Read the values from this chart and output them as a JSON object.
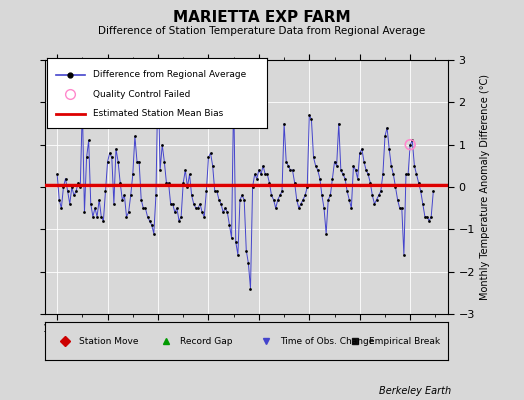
{
  "title": "MARIETTA EXP FARM",
  "subtitle": "Difference of Station Temperature Data from Regional Average",
  "ylabel": "Monthly Temperature Anomaly Difference (°C)",
  "xlim": [
    1913.5,
    1929.5
  ],
  "ylim": [
    -3,
    3
  ],
  "yticks": [
    -3,
    -2,
    -1,
    0,
    1,
    2,
    3
  ],
  "xticks": [
    1914,
    1916,
    1918,
    1920,
    1922,
    1924,
    1926,
    1928
  ],
  "bias_value": 0.05,
  "line_color": "#4444cc",
  "dot_color": "#000000",
  "bias_color": "#dd0000",
  "qc_fail_color": "#ff88cc",
  "background_color": "#d8d8d8",
  "data": [
    [
      1914.0,
      0.3
    ],
    [
      1914.083,
      -0.3
    ],
    [
      1914.167,
      -0.5
    ],
    [
      1914.25,
      0.0
    ],
    [
      1914.333,
      0.2
    ],
    [
      1914.417,
      -0.1
    ],
    [
      1914.5,
      -0.4
    ],
    [
      1914.583,
      0.0
    ],
    [
      1914.667,
      -0.2
    ],
    [
      1914.75,
      -0.1
    ],
    [
      1914.833,
      0.1
    ],
    [
      1914.917,
      0.0
    ],
    [
      1915.0,
      1.9
    ],
    [
      1915.083,
      -0.6
    ],
    [
      1915.167,
      0.7
    ],
    [
      1915.25,
      1.1
    ],
    [
      1915.333,
      -0.4
    ],
    [
      1915.417,
      -0.7
    ],
    [
      1915.5,
      -0.5
    ],
    [
      1915.583,
      -0.7
    ],
    [
      1915.667,
      -0.3
    ],
    [
      1915.75,
      -0.7
    ],
    [
      1915.833,
      -0.8
    ],
    [
      1915.917,
      -0.1
    ],
    [
      1916.0,
      0.6
    ],
    [
      1916.083,
      0.8
    ],
    [
      1916.167,
      0.7
    ],
    [
      1916.25,
      -0.4
    ],
    [
      1916.333,
      0.9
    ],
    [
      1916.417,
      0.6
    ],
    [
      1916.5,
      0.1
    ],
    [
      1916.583,
      -0.3
    ],
    [
      1916.667,
      -0.2
    ],
    [
      1916.75,
      -0.7
    ],
    [
      1916.833,
      -0.6
    ],
    [
      1916.917,
      -0.2
    ],
    [
      1917.0,
      0.3
    ],
    [
      1917.083,
      1.2
    ],
    [
      1917.167,
      0.6
    ],
    [
      1917.25,
      0.6
    ],
    [
      1917.333,
      -0.3
    ],
    [
      1917.417,
      -0.5
    ],
    [
      1917.5,
      -0.5
    ],
    [
      1917.583,
      -0.7
    ],
    [
      1917.667,
      -0.8
    ],
    [
      1917.75,
      -0.9
    ],
    [
      1917.833,
      -1.1
    ],
    [
      1917.917,
      -0.2
    ],
    [
      1918.0,
      2.6
    ],
    [
      1918.083,
      0.4
    ],
    [
      1918.167,
      1.0
    ],
    [
      1918.25,
      0.6
    ],
    [
      1918.333,
      0.1
    ],
    [
      1918.417,
      0.1
    ],
    [
      1918.5,
      -0.4
    ],
    [
      1918.583,
      -0.4
    ],
    [
      1918.667,
      -0.6
    ],
    [
      1918.75,
      -0.5
    ],
    [
      1918.833,
      -0.8
    ],
    [
      1918.917,
      -0.7
    ],
    [
      1919.0,
      0.1
    ],
    [
      1919.083,
      0.4
    ],
    [
      1919.167,
      0.0
    ],
    [
      1919.25,
      0.3
    ],
    [
      1919.333,
      -0.2
    ],
    [
      1919.417,
      -0.4
    ],
    [
      1919.5,
      -0.5
    ],
    [
      1919.583,
      -0.5
    ],
    [
      1919.667,
      -0.4
    ],
    [
      1919.75,
      -0.6
    ],
    [
      1919.833,
      -0.7
    ],
    [
      1919.917,
      -0.1
    ],
    [
      1920.0,
      0.7
    ],
    [
      1920.083,
      0.8
    ],
    [
      1920.167,
      0.5
    ],
    [
      1920.25,
      -0.1
    ],
    [
      1920.333,
      -0.1
    ],
    [
      1920.417,
      -0.3
    ],
    [
      1920.5,
      -0.4
    ],
    [
      1920.583,
      -0.6
    ],
    [
      1920.667,
      -0.5
    ],
    [
      1920.75,
      -0.6
    ],
    [
      1920.833,
      -0.9
    ],
    [
      1920.917,
      -1.2
    ],
    [
      1921.0,
      2.2
    ],
    [
      1921.083,
      -1.3
    ],
    [
      1921.167,
      -1.6
    ],
    [
      1921.25,
      -0.3
    ],
    [
      1921.333,
      -0.2
    ],
    [
      1921.417,
      -0.3
    ],
    [
      1921.5,
      -1.5
    ],
    [
      1921.583,
      -1.8
    ],
    [
      1921.667,
      -2.4
    ],
    [
      1921.75,
      0.0
    ],
    [
      1921.833,
      0.3
    ],
    [
      1921.917,
      0.2
    ],
    [
      1922.0,
      0.4
    ],
    [
      1922.083,
      0.3
    ],
    [
      1922.167,
      0.5
    ],
    [
      1922.25,
      0.3
    ],
    [
      1922.333,
      0.3
    ],
    [
      1922.417,
      0.1
    ],
    [
      1922.5,
      -0.2
    ],
    [
      1922.583,
      -0.3
    ],
    [
      1922.667,
      -0.5
    ],
    [
      1922.75,
      -0.3
    ],
    [
      1922.833,
      -0.2
    ],
    [
      1922.917,
      -0.1
    ],
    [
      1923.0,
      1.5
    ],
    [
      1923.083,
      0.6
    ],
    [
      1923.167,
      0.5
    ],
    [
      1923.25,
      0.4
    ],
    [
      1923.333,
      0.4
    ],
    [
      1923.417,
      0.1
    ],
    [
      1923.5,
      -0.3
    ],
    [
      1923.583,
      -0.5
    ],
    [
      1923.667,
      -0.4
    ],
    [
      1923.75,
      -0.3
    ],
    [
      1923.833,
      -0.2
    ],
    [
      1923.917,
      0.0
    ],
    [
      1924.0,
      1.7
    ],
    [
      1924.083,
      1.6
    ],
    [
      1924.167,
      0.7
    ],
    [
      1924.25,
      0.5
    ],
    [
      1924.333,
      0.4
    ],
    [
      1924.417,
      0.2
    ],
    [
      1924.5,
      -0.2
    ],
    [
      1924.583,
      -0.5
    ],
    [
      1924.667,
      -1.1
    ],
    [
      1924.75,
      -0.3
    ],
    [
      1924.833,
      -0.2
    ],
    [
      1924.917,
      0.2
    ],
    [
      1925.0,
      0.6
    ],
    [
      1925.083,
      0.5
    ],
    [
      1925.167,
      1.5
    ],
    [
      1925.25,
      0.4
    ],
    [
      1925.333,
      0.3
    ],
    [
      1925.417,
      0.2
    ],
    [
      1925.5,
      -0.1
    ],
    [
      1925.583,
      -0.3
    ],
    [
      1925.667,
      -0.5
    ],
    [
      1925.75,
      0.5
    ],
    [
      1925.833,
      0.4
    ],
    [
      1925.917,
      0.2
    ],
    [
      1926.0,
      0.8
    ],
    [
      1926.083,
      0.9
    ],
    [
      1926.167,
      0.6
    ],
    [
      1926.25,
      0.4
    ],
    [
      1926.333,
      0.3
    ],
    [
      1926.417,
      0.1
    ],
    [
      1926.5,
      -0.2
    ],
    [
      1926.583,
      -0.4
    ],
    [
      1926.667,
      -0.3
    ],
    [
      1926.75,
      -0.2
    ],
    [
      1926.833,
      -0.1
    ],
    [
      1926.917,
      0.3
    ],
    [
      1927.0,
      1.2
    ],
    [
      1927.083,
      1.4
    ],
    [
      1927.167,
      0.9
    ],
    [
      1927.25,
      0.5
    ],
    [
      1927.333,
      0.3
    ],
    [
      1927.417,
      0.0
    ],
    [
      1927.5,
      -0.3
    ],
    [
      1927.583,
      -0.5
    ],
    [
      1927.667,
      -0.5
    ],
    [
      1927.75,
      -1.6
    ],
    [
      1927.833,
      0.3
    ],
    [
      1927.917,
      0.3
    ],
    [
      1928.0,
      1.0
    ],
    [
      1928.083,
      1.1
    ],
    [
      1928.167,
      0.5
    ],
    [
      1928.25,
      0.3
    ],
    [
      1928.333,
      0.1
    ],
    [
      1928.417,
      -0.1
    ],
    [
      1928.5,
      -0.4
    ],
    [
      1928.583,
      -0.7
    ],
    [
      1928.667,
      -0.7
    ],
    [
      1928.75,
      -0.8
    ],
    [
      1928.833,
      -0.7
    ],
    [
      1928.917,
      -0.1
    ]
  ],
  "qc_fail_points": [
    [
      1928.0,
      1.0
    ]
  ],
  "bottom_legend": [
    {
      "label": "Station Move",
      "color": "#cc0000",
      "marker": "D"
    },
    {
      "label": "Record Gap",
      "color": "#009900",
      "marker": "^"
    },
    {
      "label": "Time of Obs. Change",
      "color": "#4444cc",
      "marker": "v"
    },
    {
      "label": "Empirical Break",
      "color": "#111111",
      "marker": "s"
    }
  ]
}
